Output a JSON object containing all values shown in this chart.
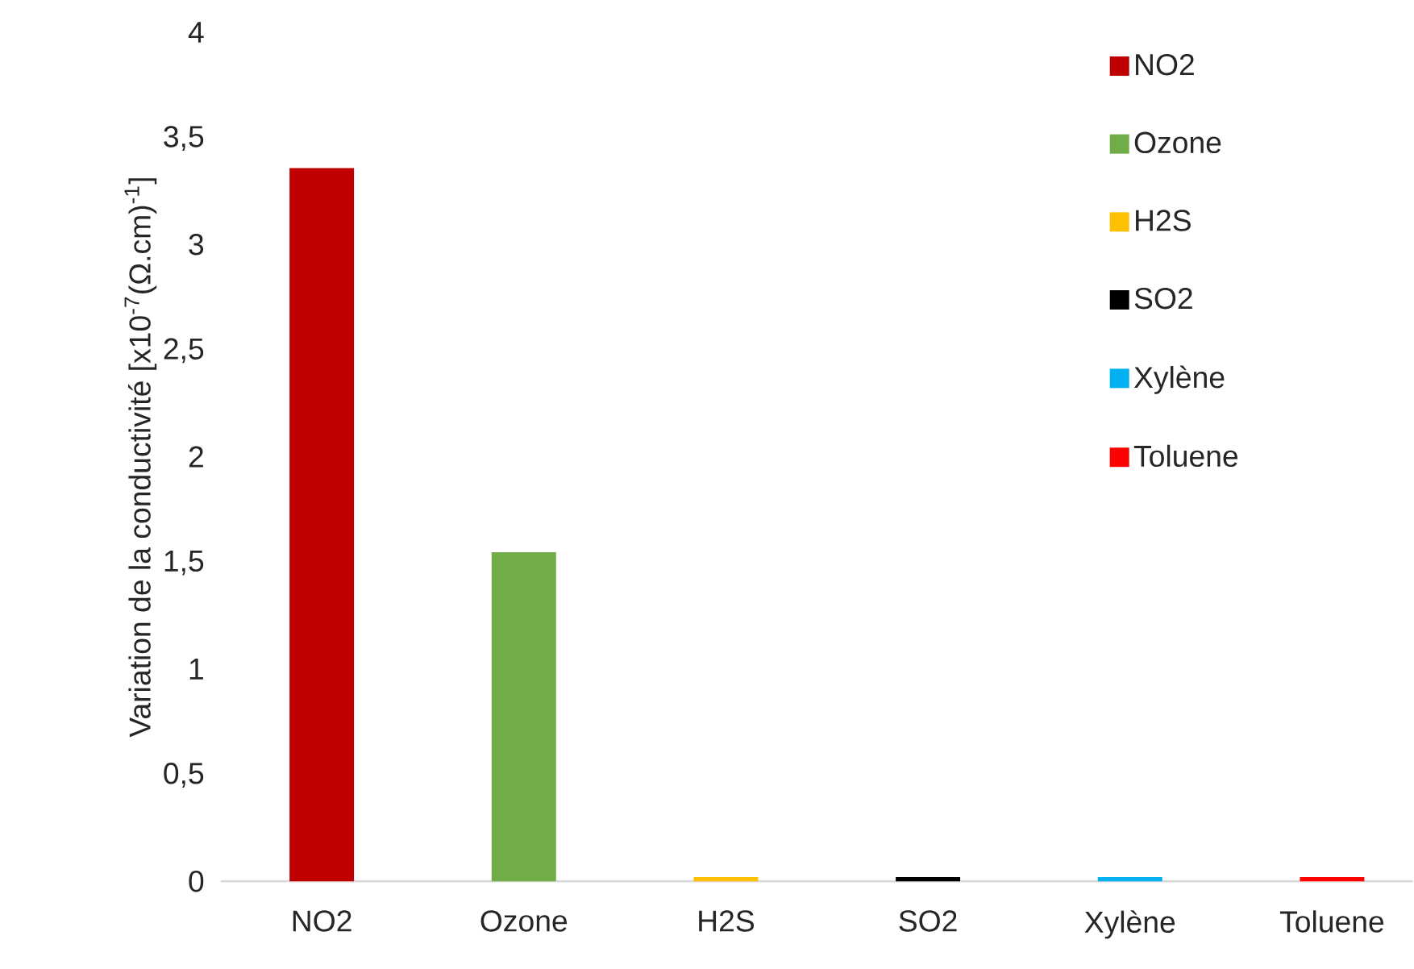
{
  "chart_data": {
    "type": "bar",
    "ylabel": "Variation de la conductivité [x10$^{-7}$(Ω.cm)$^{-1}$]",
    "categories": [
      "NO2",
      "Ozone",
      "H2S",
      "SO2",
      "Xylène",
      "Toluene"
    ],
    "series": [
      {
        "name": "NO2",
        "color": "#c00000",
        "values": [
          3.36,
          null,
          null,
          null,
          null,
          null
        ]
      },
      {
        "name": "Ozone",
        "color": "#70ad47",
        "values": [
          null,
          1.55,
          null,
          null,
          null,
          null
        ]
      },
      {
        "name": "H2S",
        "color": "#ffc000",
        "values": [
          null,
          null,
          0.02,
          null,
          null,
          null
        ]
      },
      {
        "name": "SO2",
        "color": "#000000",
        "values": [
          null,
          null,
          null,
          0.02,
          null,
          null
        ]
      },
      {
        "name": "Xylène",
        "color": "#00b0f0",
        "values": [
          null,
          null,
          null,
          null,
          0.02,
          null
        ]
      },
      {
        "name": "Toluene",
        "color": "#ff0000",
        "values": [
          null,
          null,
          null,
          null,
          null,
          0.02
        ]
      }
    ],
    "ylim": [
      0,
      4
    ],
    "yticks": [
      0,
      {
        "value": 0.5,
        "label": "0,5"
      },
      1,
      {
        "value": 1.5,
        "label": "1,5"
      },
      2,
      {
        "value": 2.5,
        "label": "2,5"
      },
      3,
      {
        "value": 3.5,
        "label": "3,5"
      },
      4
    ],
    "grid": false,
    "legend": "top right"
  }
}
